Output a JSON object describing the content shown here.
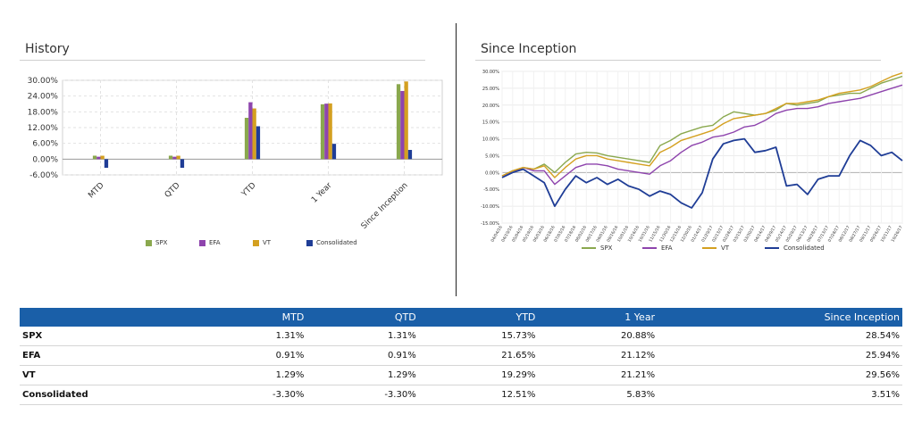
{
  "colors": {
    "SPX": "#8aa84e",
    "EFA": "#8e44ad",
    "VT": "#d4a020",
    "Consolidated": "#1f3d96",
    "header_bg": "#1a5fa8"
  },
  "history": {
    "title": "History",
    "chart_data": {
      "type": "bar",
      "categories": [
        "MTD",
        "QTD",
        "YTD",
        "1 Year",
        "Since Inception"
      ],
      "series": [
        {
          "name": "SPX",
          "values": [
            1.31,
            1.31,
            15.73,
            20.88,
            28.54
          ]
        },
        {
          "name": "EFA",
          "values": [
            0.91,
            0.91,
            21.65,
            21.12,
            25.94
          ]
        },
        {
          "name": "VT",
          "values": [
            1.29,
            1.29,
            19.29,
            21.21,
            29.56
          ]
        },
        {
          "name": "Consolidated",
          "values": [
            -3.3,
            -3.3,
            12.51,
            5.83,
            3.51
          ]
        }
      ],
      "ylim": [
        -6,
        30
      ],
      "yticks": [
        "-6.00%",
        "0.00%",
        "6.00%",
        "12.00%",
        "18.00%",
        "24.00%",
        "30.00%"
      ],
      "grid": true,
      "legend": "bottom"
    }
  },
  "inception": {
    "title": "Since Inception",
    "chart_data": {
      "type": "line",
      "ylim": [
        -15,
        30
      ],
      "yticks": [
        "-15.00%",
        "-10.00%",
        "-5.00%",
        "0.00%",
        "5.00%",
        "10.00%",
        "15.00%",
        "20.00%",
        "25.00%",
        "30.00%"
      ],
      "x": [
        "04/04/16",
        "04/19/16",
        "05/04/16",
        "05/19/16",
        "06/03/16",
        "06/18/16",
        "07/03/16",
        "07/18/16",
        "08/02/16",
        "08/17/16",
        "09/01/16",
        "09/16/16",
        "10/01/16",
        "10/16/16",
        "10/31/16",
        "11/15/16",
        "11/30/16",
        "12/15/16",
        "12/30/16",
        "01/14/17",
        "01/29/17",
        "02/13/17",
        "02/28/17",
        "03/15/17",
        "03/30/17",
        "04/14/17",
        "04/29/17",
        "05/14/17",
        "05/29/17",
        "06/13/17",
        "06/28/17",
        "07/13/17",
        "07/28/17",
        "08/12/17",
        "08/27/17",
        "09/11/17",
        "09/26/17",
        "10/11/17",
        "10/26/17"
      ],
      "series": [
        {
          "name": "SPX",
          "values": [
            -1.0,
            0.5,
            1.5,
            1.0,
            2.5,
            0.0,
            3.0,
            5.5,
            6.0,
            5.8,
            5.0,
            4.5,
            4.0,
            3.5,
            3.0,
            8.0,
            9.5,
            11.5,
            12.5,
            13.5,
            14.0,
            16.5,
            18.0,
            17.5,
            17.0,
            17.5,
            18.5,
            20.5,
            20.0,
            20.5,
            21.0,
            22.5,
            23.0,
            23.5,
            23.5,
            25.0,
            26.5,
            27.5,
            28.54
          ]
        },
        {
          "name": "EFA",
          "values": [
            -1.0,
            0.0,
            1.5,
            0.5,
            0.5,
            -3.5,
            -1.0,
            1.5,
            2.5,
            2.5,
            2.0,
            1.0,
            0.5,
            0.0,
            -0.5,
            2.0,
            3.5,
            6.0,
            8.0,
            9.0,
            10.5,
            11.0,
            12.0,
            13.5,
            14.0,
            15.5,
            17.5,
            18.5,
            19.0,
            19.0,
            19.5,
            20.5,
            21.0,
            21.5,
            22.0,
            23.0,
            24.0,
            25.0,
            25.94
          ]
        },
        {
          "name": "VT",
          "values": [
            -1.0,
            0.5,
            1.5,
            1.0,
            2.0,
            -1.5,
            1.5,
            4.0,
            5.0,
            5.0,
            4.0,
            3.5,
            3.0,
            2.5,
            2.0,
            6.0,
            7.5,
            9.5,
            10.5,
            11.5,
            12.5,
            14.5,
            16.0,
            16.5,
            17.0,
            17.5,
            19.0,
            20.5,
            20.5,
            21.0,
            21.5,
            22.5,
            23.5,
            24.0,
            24.5,
            25.5,
            27.0,
            28.5,
            29.56
          ]
        },
        {
          "name": "Consolidated",
          "values": [
            -1.5,
            0.0,
            1.0,
            -1.0,
            -3.0,
            -10.0,
            -5.0,
            -1.0,
            -3.0,
            -1.5,
            -3.5,
            -2.0,
            -4.0,
            -5.0,
            -7.0,
            -5.5,
            -6.5,
            -9.0,
            -10.5,
            -6.0,
            4.0,
            8.5,
            9.5,
            10.0,
            6.0,
            6.5,
            7.5,
            -4.0,
            -3.5,
            -6.5,
            -2.0,
            -1.0,
            -1.0,
            5.0,
            9.5,
            8.0,
            5.0,
            6.0,
            3.51
          ]
        }
      ],
      "grid": true,
      "legend": "bottom"
    }
  },
  "table": {
    "columns": [
      "",
      "MTD",
      "QTD",
      "YTD",
      "1 Year",
      "Since Inception"
    ],
    "rows": [
      [
        "SPX",
        "1.31%",
        "1.31%",
        "15.73%",
        "20.88%",
        "28.54%"
      ],
      [
        "EFA",
        "0.91%",
        "0.91%",
        "21.65%",
        "21.12%",
        "25.94%"
      ],
      [
        "VT",
        "1.29%",
        "1.29%",
        "19.29%",
        "21.21%",
        "29.56%"
      ],
      [
        "Consolidated",
        "-3.30%",
        "-3.30%",
        "12.51%",
        "5.83%",
        "3.51%"
      ]
    ]
  }
}
